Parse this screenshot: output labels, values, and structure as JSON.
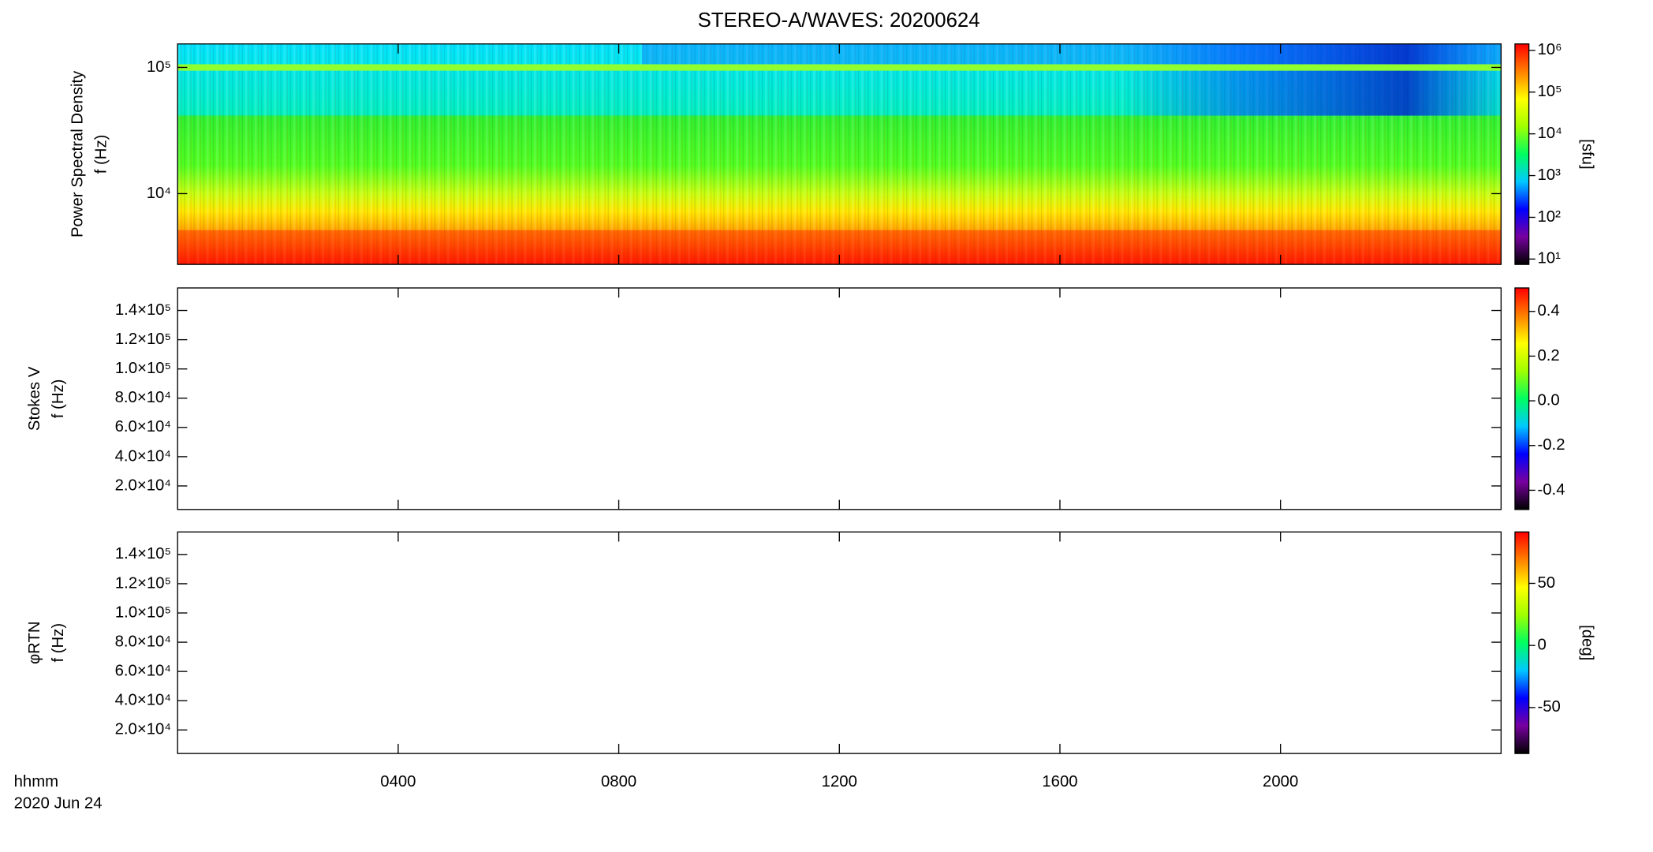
{
  "chart_data": [
    {
      "type": "heatmap",
      "title": "STEREO-A/WAVES: 20200624",
      "ylabel": [
        "Power Spectral Density",
        "f (Hz)"
      ],
      "ylog": true,
      "ylim": [
        2750,
        153500
      ],
      "yticks": [
        {
          "value": 10000,
          "label": "10⁴"
        },
        {
          "value": 100000,
          "label": "10⁵"
        }
      ],
      "xlim": [
        0,
        24
      ],
      "xticks": [
        4,
        8,
        12,
        16,
        20
      ],
      "colorscale": [
        "#000000",
        "#7800a0",
        "#0000ff",
        "#00c8ff",
        "#00ff60",
        "#a0ff00",
        "#ffff00",
        "#ff8000",
        "#ff0000"
      ],
      "colorbar": {
        "label": "[sfu]",
        "log": true,
        "lim": [
          7.45,
          1426000
        ],
        "ticks": [
          {
            "value": 10,
            "label": "10¹"
          },
          {
            "value": 100,
            "label": "10²"
          },
          {
            "value": 1000,
            "label": "10³"
          },
          {
            "value": 10000,
            "label": "10⁴"
          },
          {
            "value": 100000,
            "label": "10⁵"
          },
          {
            "value": 1000000,
            "label": "10⁶"
          }
        ]
      }
    },
    {
      "type": "heatmap",
      "ylabel": [
        "Stokes V",
        "f (Hz)"
      ],
      "ylog": false,
      "ylim": [
        3900,
        155400
      ],
      "yticks": [
        {
          "value": 20000,
          "label": "2.0×10⁴"
        },
        {
          "value": 40000,
          "label": "4.0×10⁴"
        },
        {
          "value": 60000,
          "label": "6.0×10⁴"
        },
        {
          "value": 80000,
          "label": "8.0×10⁴"
        },
        {
          "value": 100000,
          "label": "1.0×10⁵"
        },
        {
          "value": 120000,
          "label": "1.2×10⁵"
        },
        {
          "value": 140000,
          "label": "1.4×10⁵"
        }
      ],
      "xlim": [
        0,
        24
      ],
      "xticks": [
        4,
        8,
        12,
        16,
        20
      ],
      "colorscale": [
        "#000000",
        "#7800a0",
        "#0000ff",
        "#00c8ff",
        "#00ff60",
        "#a0ff00",
        "#ffff00",
        "#ff8000",
        "#ff0000"
      ],
      "colorbar": {
        "log": false,
        "lim": [
          -0.486,
          0.505
        ],
        "ticks": [
          -0.4,
          -0.2,
          {
            "value": 0,
            "label": "0.0"
          },
          0.2,
          0.4
        ]
      }
    },
    {
      "type": "heatmap",
      "ylabel": [
        "φRTN",
        "f (Hz)"
      ],
      "ylog": false,
      "ylim": [
        3900,
        155400
      ],
      "yticks": [
        {
          "value": 20000,
          "label": "2.0×10⁴"
        },
        {
          "value": 40000,
          "label": "4.0×10⁴"
        },
        {
          "value": 60000,
          "label": "6.0×10⁴"
        },
        {
          "value": 80000,
          "label": "8.0×10⁴"
        },
        {
          "value": 100000,
          "label": "1.0×10⁵"
        },
        {
          "value": 120000,
          "label": "1.2×10⁵"
        },
        {
          "value": 140000,
          "label": "1.4×10⁵"
        }
      ],
      "xlim": [
        0,
        24
      ],
      "xticks": [
        {
          "value": 4,
          "label": "0400"
        },
        {
          "value": 8,
          "label": "0800"
        },
        {
          "value": 12,
          "label": "1200"
        },
        {
          "value": 16,
          "label": "1600"
        },
        {
          "value": 20,
          "label": "2000"
        }
      ],
      "xlabel": [
        "hhmm",
        "2020 Jun 24"
      ],
      "colorscale": [
        "#000000",
        "#7800a0",
        "#0000ff",
        "#00c8ff",
        "#00ff60",
        "#a0ff00",
        "#ffff00",
        "#ff8000",
        "#ff0000"
      ],
      "colorbar": {
        "label": "[deg]",
        "log": false,
        "lim": [
          -87,
          91.4
        ],
        "ticks": [
          -50,
          0,
          50
        ]
      }
    }
  ]
}
